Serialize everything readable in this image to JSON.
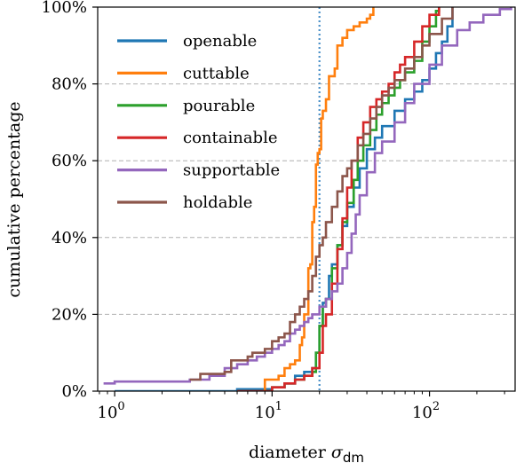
{
  "chart_data": {
    "type": "line",
    "subtype": "step-cdf",
    "title": "",
    "xlabel": "diameter",
    "xlabel_symbol": "σ",
    "xlabel_subscript": "dm",
    "ylabel": "cumulative percentage",
    "xscale": "log",
    "xlim": [
      0.78,
      350
    ],
    "ylim": [
      0,
      100
    ],
    "x_ticks": [
      {
        "value": 1,
        "label": "10",
        "exp": "0"
      },
      {
        "value": 10,
        "label": "10",
        "exp": "1"
      },
      {
        "value": 100,
        "label": "10",
        "exp": "2"
      }
    ],
    "y_ticks": [
      {
        "value": 0,
        "label": "0%"
      },
      {
        "value": 20,
        "label": "20%"
      },
      {
        "value": 40,
        "label": "40%"
      },
      {
        "value": 60,
        "label": "60%"
      },
      {
        "value": 80,
        "label": "80%"
      },
      {
        "value": 100,
        "label": "100%"
      }
    ],
    "grid": "horizontal dashed",
    "legend_position": "top-left",
    "vline": {
      "x": 20,
      "color": "#4a90c8",
      "style": "dotted"
    },
    "series": [
      {
        "name": "openable",
        "color": "#1f77b4",
        "points": [
          [
            1,
            0
          ],
          [
            6,
            0.5
          ],
          [
            10,
            1
          ],
          [
            12,
            2
          ],
          [
            14,
            4
          ],
          [
            16,
            5
          ],
          [
            18,
            6
          ],
          [
            19,
            10
          ],
          [
            20,
            17
          ],
          [
            20.5,
            17
          ],
          [
            21,
            23
          ],
          [
            22,
            24
          ],
          [
            23,
            30
          ],
          [
            24,
            33
          ],
          [
            26,
            38
          ],
          [
            28,
            43
          ],
          [
            30,
            48
          ],
          [
            33,
            53
          ],
          [
            36,
            58
          ],
          [
            40,
            63
          ],
          [
            45,
            66
          ],
          [
            50,
            69
          ],
          [
            60,
            73
          ],
          [
            70,
            76
          ],
          [
            80,
            78
          ],
          [
            90,
            81
          ],
          [
            100,
            84
          ],
          [
            110,
            88
          ],
          [
            120,
            91
          ],
          [
            130,
            95
          ],
          [
            140,
            100
          ]
        ]
      },
      {
        "name": "cuttable",
        "color": "#ff7f0e",
        "points": [
          [
            9,
            0
          ],
          [
            9,
            3
          ],
          [
            11,
            4
          ],
          [
            12,
            6
          ],
          [
            13,
            7
          ],
          [
            14,
            8
          ],
          [
            15,
            12
          ],
          [
            15.5,
            14
          ],
          [
            16,
            20
          ],
          [
            17,
            32
          ],
          [
            17.5,
            33
          ],
          [
            18,
            44
          ],
          [
            18.5,
            48
          ],
          [
            19,
            59
          ],
          [
            19.5,
            62
          ],
          [
            20,
            63
          ],
          [
            20.5,
            71
          ],
          [
            21,
            73
          ],
          [
            22,
            76
          ],
          [
            23,
            82
          ],
          [
            25,
            84
          ],
          [
            26,
            90
          ],
          [
            28,
            92
          ],
          [
            30,
            94
          ],
          [
            33,
            95
          ],
          [
            36,
            96
          ],
          [
            40,
            97
          ],
          [
            42,
            98
          ],
          [
            44,
            100
          ]
        ]
      },
      {
        "name": "pourable",
        "color": "#2ca02c",
        "points": [
          [
            6,
            0
          ],
          [
            10,
            1
          ],
          [
            12,
            2
          ],
          [
            14,
            3
          ],
          [
            16,
            4
          ],
          [
            18,
            5
          ],
          [
            19,
            10
          ],
          [
            20,
            17
          ],
          [
            21,
            22
          ],
          [
            22,
            24
          ],
          [
            24,
            32
          ],
          [
            26,
            38
          ],
          [
            28,
            44
          ],
          [
            30,
            49
          ],
          [
            33,
            55
          ],
          [
            35,
            60
          ],
          [
            38,
            64
          ],
          [
            42,
            68
          ],
          [
            46,
            72
          ],
          [
            50,
            75
          ],
          [
            55,
            77
          ],
          [
            60,
            79
          ],
          [
            65,
            81
          ],
          [
            70,
            83
          ],
          [
            80,
            86
          ],
          [
            90,
            91
          ],
          [
            100,
            95
          ],
          [
            110,
            99
          ],
          [
            115,
            100
          ]
        ]
      },
      {
        "name": "containable",
        "color": "#d62728",
        "points": [
          [
            6,
            0
          ],
          [
            10,
            1
          ],
          [
            12,
            2
          ],
          [
            14,
            3
          ],
          [
            16,
            4
          ],
          [
            18,
            6
          ],
          [
            20,
            10
          ],
          [
            21,
            17
          ],
          [
            22,
            20
          ],
          [
            24,
            28
          ],
          [
            26,
            37
          ],
          [
            28,
            45
          ],
          [
            30,
            53
          ],
          [
            32,
            60
          ],
          [
            35,
            66
          ],
          [
            38,
            70
          ],
          [
            42,
            74
          ],
          [
            46,
            76
          ],
          [
            50,
            78
          ],
          [
            55,
            80
          ],
          [
            60,
            83
          ],
          [
            65,
            85
          ],
          [
            70,
            87
          ],
          [
            80,
            91
          ],
          [
            90,
            95
          ],
          [
            100,
            98
          ],
          [
            115,
            100
          ]
        ]
      },
      {
        "name": "supportable",
        "color": "#9467bd",
        "points": [
          [
            0.85,
            2
          ],
          [
            1,
            2.5
          ],
          [
            2,
            2.5
          ],
          [
            3,
            3
          ],
          [
            4,
            4
          ],
          [
            5,
            6
          ],
          [
            6,
            7
          ],
          [
            7,
            8
          ],
          [
            8,
            9
          ],
          [
            9,
            10
          ],
          [
            10,
            11
          ],
          [
            11,
            12
          ],
          [
            12,
            13
          ],
          [
            13,
            15
          ],
          [
            14,
            16
          ],
          [
            15,
            17
          ],
          [
            16,
            18
          ],
          [
            17,
            19
          ],
          [
            18,
            20
          ],
          [
            20,
            22
          ],
          [
            22,
            24
          ],
          [
            24,
            26
          ],
          [
            26,
            28
          ],
          [
            28,
            32
          ],
          [
            30,
            36
          ],
          [
            32,
            41
          ],
          [
            34,
            46
          ],
          [
            36,
            51
          ],
          [
            40,
            57
          ],
          [
            45,
            62
          ],
          [
            50,
            65
          ],
          [
            60,
            70
          ],
          [
            70,
            75
          ],
          [
            80,
            80
          ],
          [
            100,
            85
          ],
          [
            120,
            90
          ],
          [
            150,
            94
          ],
          [
            180,
            96
          ],
          [
            220,
            98
          ],
          [
            280,
            99.5
          ],
          [
            330,
            100
          ]
        ]
      },
      {
        "name": "holdable",
        "color": "#8c564b",
        "points": [
          [
            3,
            3
          ],
          [
            3.5,
            4.5
          ],
          [
            5,
            5
          ],
          [
            5.5,
            8
          ],
          [
            7,
            9
          ],
          [
            7.5,
            10
          ],
          [
            9,
            11
          ],
          [
            10,
            13
          ],
          [
            11,
            14
          ],
          [
            12,
            15
          ],
          [
            13,
            18
          ],
          [
            14,
            20
          ],
          [
            15,
            22
          ],
          [
            16,
            24
          ],
          [
            17,
            26
          ],
          [
            18,
            30
          ],
          [
            19,
            35
          ],
          [
            20,
            38
          ],
          [
            21,
            40
          ],
          [
            22,
            44
          ],
          [
            24,
            48
          ],
          [
            26,
            52
          ],
          [
            28,
            56
          ],
          [
            30,
            58
          ],
          [
            32,
            60
          ],
          [
            35,
            64
          ],
          [
            38,
            67
          ],
          [
            42,
            71
          ],
          [
            46,
            74
          ],
          [
            50,
            77
          ],
          [
            55,
            79
          ],
          [
            60,
            81
          ],
          [
            70,
            84
          ],
          [
            80,
            87
          ],
          [
            90,
            90
          ],
          [
            100,
            93
          ],
          [
            120,
            97
          ],
          [
            140,
            100
          ]
        ]
      }
    ]
  }
}
